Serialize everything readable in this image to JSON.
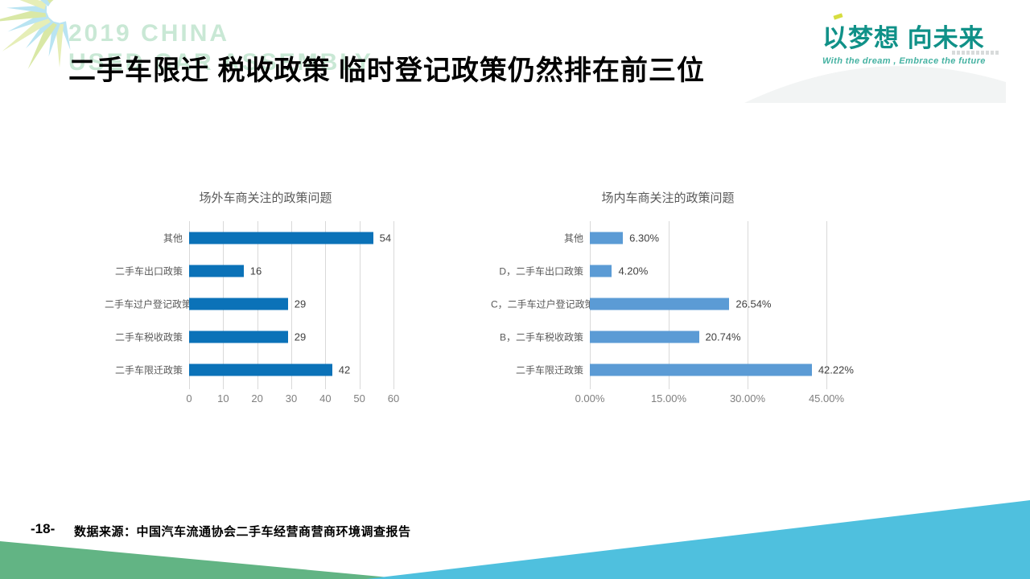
{
  "slide": {
    "watermark_line1": "2019 CHINA",
    "watermark_line2": "USED CAR ASSEMBLY",
    "title": "二手车限迁 税收政策 临时登记政策仍然排在前三位",
    "logo": {
      "main": "以梦想  向未来",
      "subtitle": "With the dream , Embrace the future"
    },
    "footer": {
      "page_number": "-18-",
      "source": "数据来源：中国汽车流通协会二手车经营商营商环境调查报告"
    },
    "colors": {
      "left_bar_blue": "#0b72b8",
      "right_bar_blue": "#5b9bd5",
      "logo_teal": "#109188",
      "watermark_green": "#c9e8d5",
      "wave_blue": "#4fc0de",
      "wave_green": "#62b484",
      "gridline_gray": "#d9d9d9"
    }
  },
  "chart_data": [
    {
      "type": "bar",
      "orientation": "horizontal",
      "title": "场外车商关注的政策问题",
      "categories": [
        "其他",
        "二手车出口政策",
        "二手车过户登记政策",
        "二手车税收政策",
        "二手车限迁政策"
      ],
      "values": [
        54,
        16,
        29,
        29,
        42
      ],
      "data_labels": [
        "54",
        "16",
        "29",
        "29",
        "42"
      ],
      "xticks": [
        0,
        10,
        20,
        30,
        40,
        50,
        60
      ],
      "xtick_labels": [
        "0",
        "10",
        "20",
        "30",
        "40",
        "50",
        "60"
      ],
      "xlim": [
        0,
        60
      ],
      "grid": true,
      "legend": false,
      "bar_color": "#0b72b8"
    },
    {
      "type": "bar",
      "orientation": "horizontal",
      "title": "场内车商关注的政策问题",
      "categories": [
        "其他",
        "D，二手车出口政策",
        "C，二手车过户登记政策",
        "B，二手车税收政策",
        "二手车限迁政策"
      ],
      "values": [
        6.3,
        4.2,
        26.54,
        20.74,
        42.22
      ],
      "data_labels": [
        "6.30%",
        "4.20%",
        "26.54%",
        "20.74%",
        "42.22%"
      ],
      "xticks": [
        0,
        15,
        30,
        45
      ],
      "xtick_labels": [
        "0.00%",
        "15.00%",
        "30.00%",
        "45.00%"
      ],
      "xlim": [
        0,
        45
      ],
      "grid": true,
      "legend": false,
      "bar_color": "#5b9bd5"
    }
  ]
}
